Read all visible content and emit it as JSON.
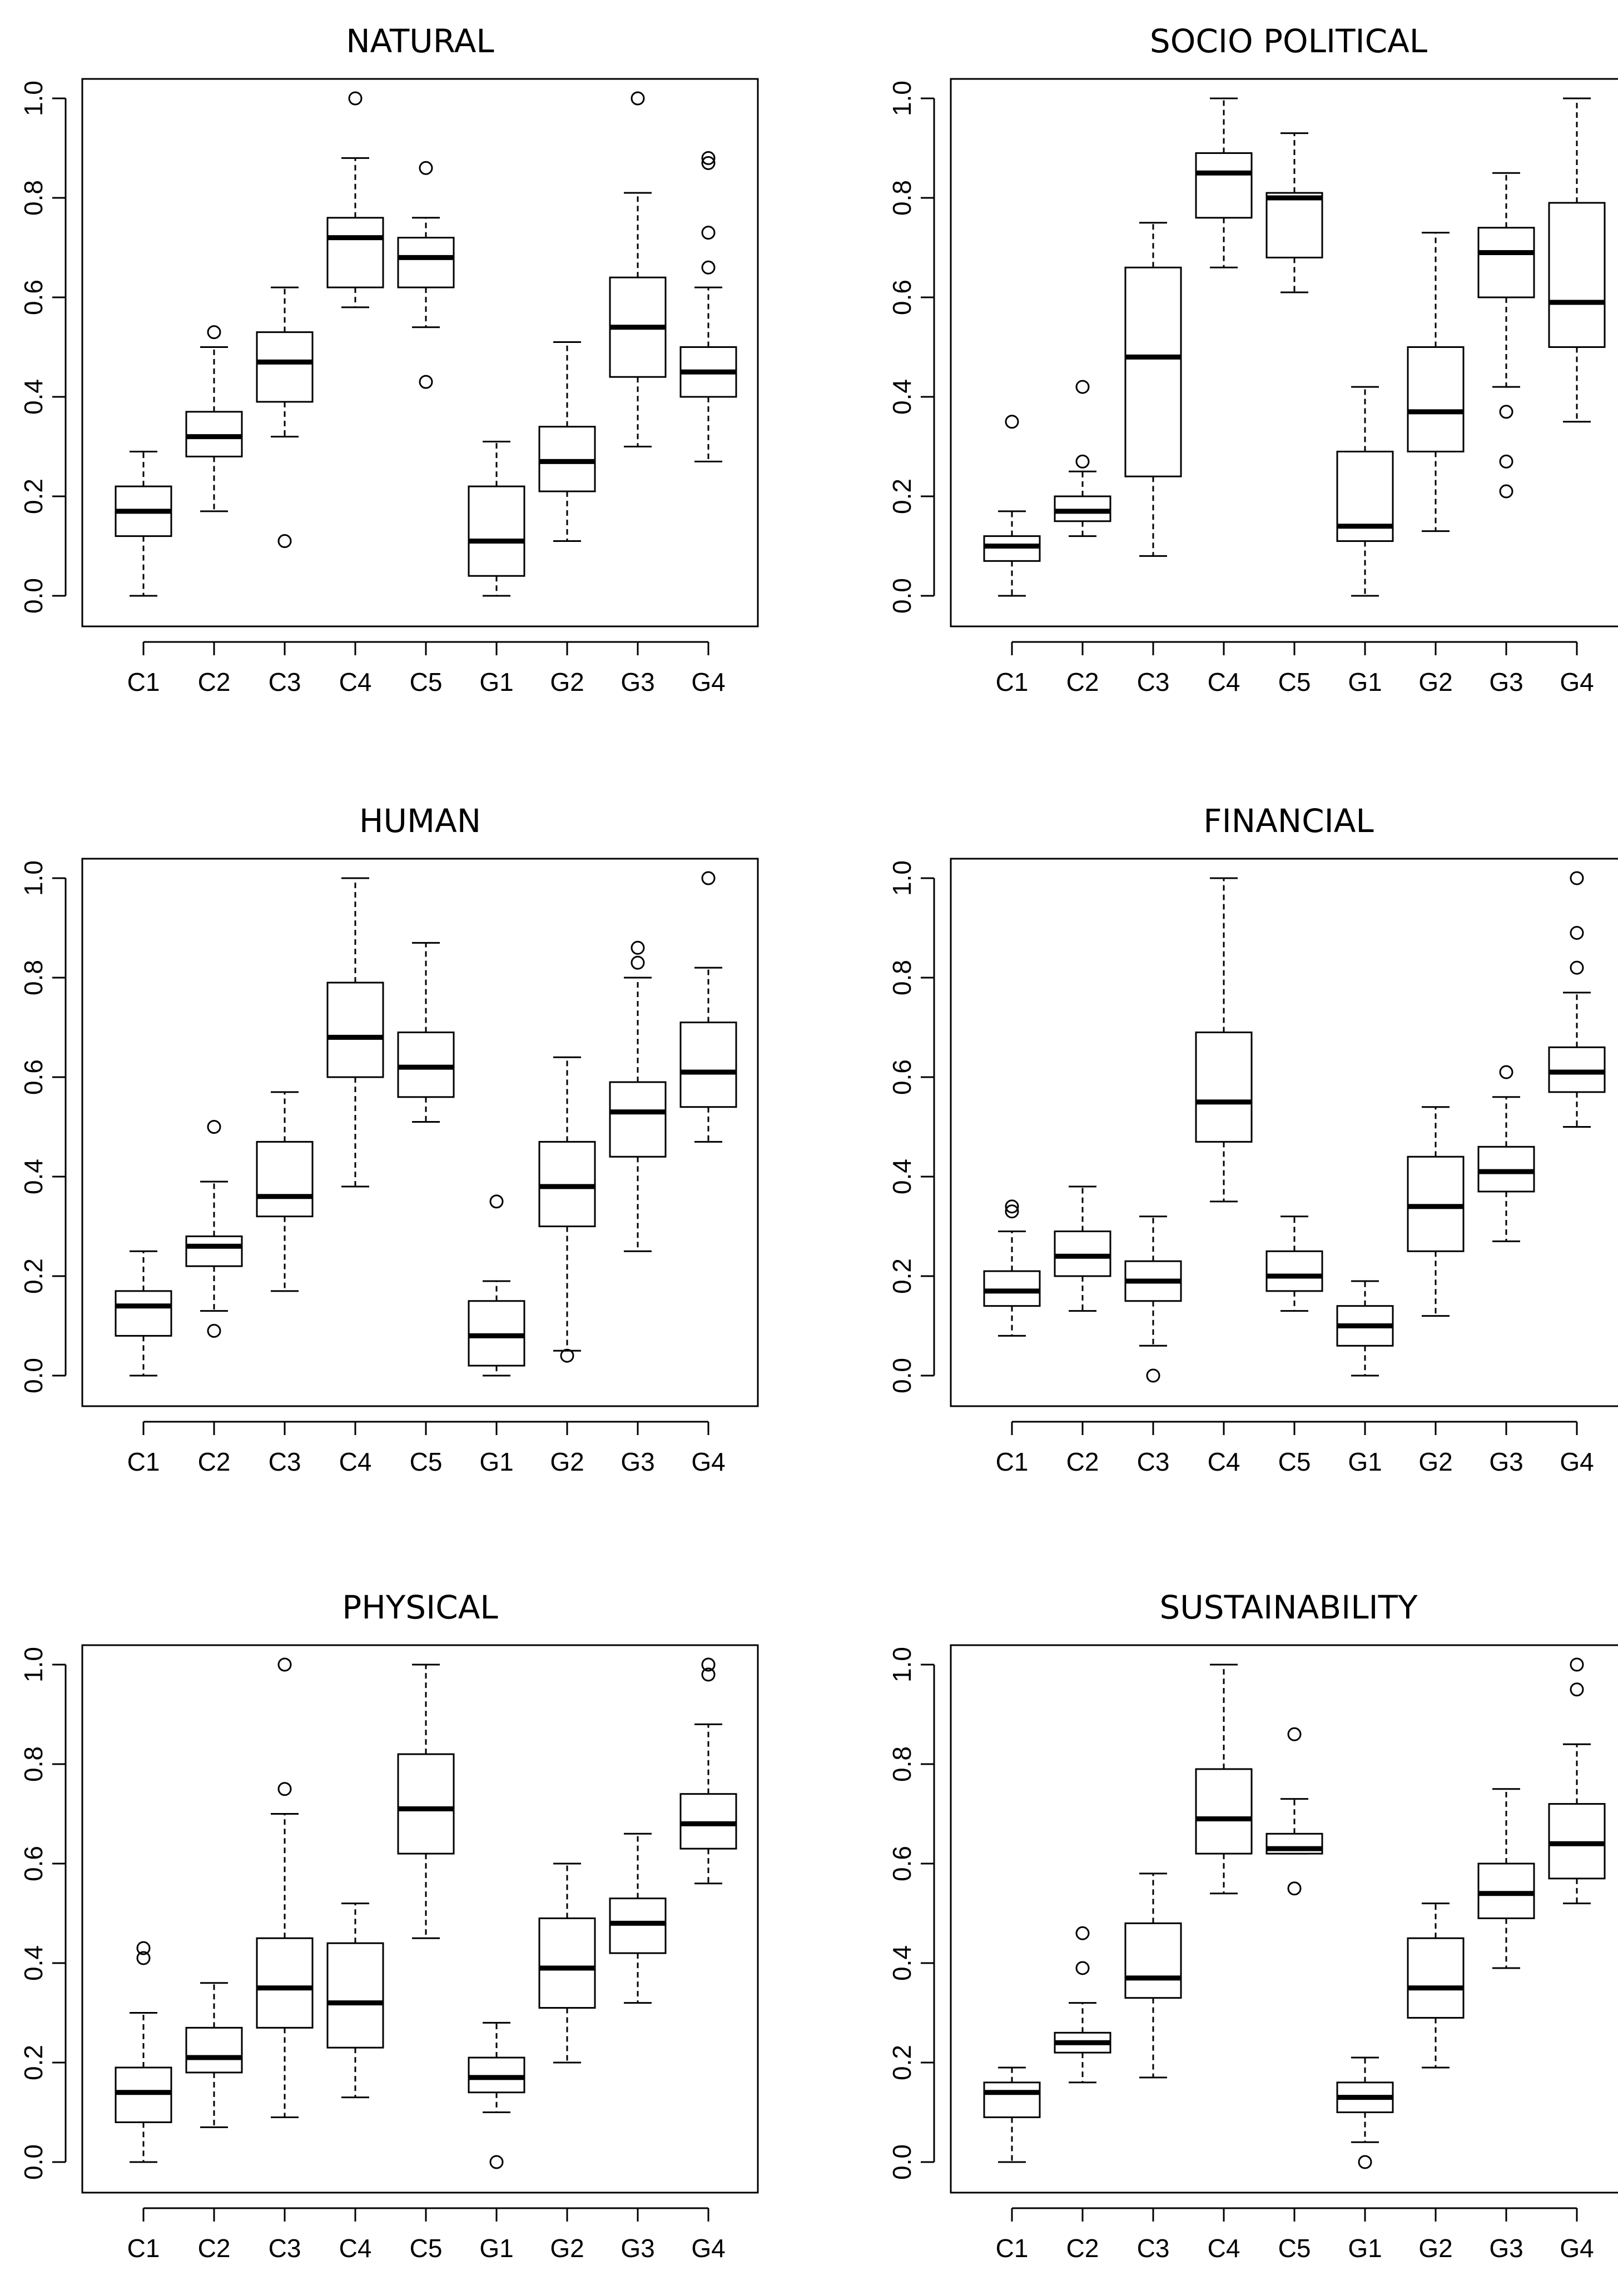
{
  "chart_data": [
    {
      "type": "boxplot",
      "title": "NATURAL",
      "categories": [
        "C1",
        "C2",
        "C3",
        "C4",
        "C5",
        "G1",
        "G2",
        "G3",
        "G4"
      ],
      "ylim": [
        0,
        1
      ],
      "yticks": [
        "0.0",
        "0.2",
        "0.4",
        "0.6",
        "0.8",
        "1.0"
      ],
      "boxes": [
        {
          "min": 0.0,
          "q1": 0.12,
          "median": 0.17,
          "q3": 0.22,
          "max": 0.29,
          "outliers": []
        },
        {
          "min": 0.17,
          "q1": 0.28,
          "median": 0.32,
          "q3": 0.37,
          "max": 0.5,
          "outliers": [
            0.53
          ]
        },
        {
          "min": 0.32,
          "q1": 0.39,
          "median": 0.47,
          "q3": 0.53,
          "max": 0.62,
          "outliers": [
            0.11
          ]
        },
        {
          "min": 0.58,
          "q1": 0.62,
          "median": 0.72,
          "q3": 0.76,
          "max": 0.88,
          "outliers": [
            1.0
          ]
        },
        {
          "min": 0.54,
          "q1": 0.62,
          "median": 0.68,
          "q3": 0.72,
          "max": 0.76,
          "outliers": [
            0.86,
            0.43
          ]
        },
        {
          "min": 0.0,
          "q1": 0.04,
          "median": 0.11,
          "q3": 0.22,
          "max": 0.31,
          "outliers": []
        },
        {
          "min": 0.11,
          "q1": 0.21,
          "median": 0.27,
          "q3": 0.34,
          "max": 0.51,
          "outliers": []
        },
        {
          "min": 0.3,
          "q1": 0.44,
          "median": 0.54,
          "q3": 0.64,
          "max": 0.81,
          "outliers": [
            1.0
          ]
        },
        {
          "min": 0.27,
          "q1": 0.4,
          "median": 0.45,
          "q3": 0.5,
          "max": 0.62,
          "outliers": [
            0.66,
            0.73,
            0.87,
            0.88
          ]
        }
      ]
    },
    {
      "type": "boxplot",
      "title": "SOCIO POLITICAL",
      "categories": [
        "C1",
        "C2",
        "C3",
        "C4",
        "C5",
        "G1",
        "G2",
        "G3",
        "G4"
      ],
      "ylim": [
        0,
        1
      ],
      "yticks": [
        "0.0",
        "0.2",
        "0.4",
        "0.6",
        "0.8",
        "1.0"
      ],
      "boxes": [
        {
          "min": 0.0,
          "q1": 0.07,
          "median": 0.1,
          "q3": 0.12,
          "max": 0.17,
          "outliers": [
            0.35
          ]
        },
        {
          "min": 0.12,
          "q1": 0.15,
          "median": 0.17,
          "q3": 0.2,
          "max": 0.25,
          "outliers": [
            0.27,
            0.42
          ]
        },
        {
          "min": 0.08,
          "q1": 0.24,
          "median": 0.48,
          "q3": 0.66,
          "max": 0.75,
          "outliers": []
        },
        {
          "min": 0.66,
          "q1": 0.76,
          "median": 0.85,
          "q3": 0.89,
          "max": 1.0,
          "outliers": []
        },
        {
          "min": 0.61,
          "q1": 0.68,
          "median": 0.8,
          "q3": 0.81,
          "max": 0.93,
          "outliers": []
        },
        {
          "min": 0.0,
          "q1": 0.11,
          "median": 0.14,
          "q3": 0.29,
          "max": 0.42,
          "outliers": []
        },
        {
          "min": 0.13,
          "q1": 0.29,
          "median": 0.37,
          "q3": 0.5,
          "max": 0.73,
          "outliers": []
        },
        {
          "min": 0.42,
          "q1": 0.6,
          "median": 0.69,
          "q3": 0.74,
          "max": 0.85,
          "outliers": [
            0.37,
            0.27,
            0.21
          ]
        },
        {
          "min": 0.35,
          "q1": 0.5,
          "median": 0.59,
          "q3": 0.79,
          "max": 1.0,
          "outliers": []
        }
      ]
    },
    {
      "type": "boxplot",
      "title": "HUMAN",
      "categories": [
        "C1",
        "C2",
        "C3",
        "C4",
        "C5",
        "G1",
        "G2",
        "G3",
        "G4"
      ],
      "ylim": [
        0,
        1
      ],
      "yticks": [
        "0.0",
        "0.2",
        "0.4",
        "0.6",
        "0.8",
        "1.0"
      ],
      "boxes": [
        {
          "min": 0.0,
          "q1": 0.08,
          "median": 0.14,
          "q3": 0.17,
          "max": 0.25,
          "outliers": []
        },
        {
          "min": 0.13,
          "q1": 0.22,
          "median": 0.26,
          "q3": 0.28,
          "max": 0.39,
          "outliers": [
            0.5,
            0.09
          ]
        },
        {
          "min": 0.17,
          "q1": 0.32,
          "median": 0.36,
          "q3": 0.47,
          "max": 0.57,
          "outliers": []
        },
        {
          "min": 0.38,
          "q1": 0.6,
          "median": 0.68,
          "q3": 0.79,
          "max": 1.0,
          "outliers": []
        },
        {
          "min": 0.51,
          "q1": 0.56,
          "median": 0.62,
          "q3": 0.69,
          "max": 0.87,
          "outliers": []
        },
        {
          "min": 0.0,
          "q1": 0.02,
          "median": 0.08,
          "q3": 0.15,
          "max": 0.19,
          "outliers": [
            0.35
          ]
        },
        {
          "min": 0.05,
          "q1": 0.3,
          "median": 0.38,
          "q3": 0.47,
          "max": 0.64,
          "outliers": [
            0.04
          ]
        },
        {
          "min": 0.25,
          "q1": 0.44,
          "median": 0.53,
          "q3": 0.59,
          "max": 0.8,
          "outliers": [
            0.83,
            0.86
          ]
        },
        {
          "min": 0.47,
          "q1": 0.54,
          "median": 0.61,
          "q3": 0.71,
          "max": 0.82,
          "outliers": [
            1.0
          ]
        }
      ]
    },
    {
      "type": "boxplot",
      "title": "FINANCIAL",
      "categories": [
        "C1",
        "C2",
        "C3",
        "C4",
        "C5",
        "G1",
        "G2",
        "G3",
        "G4"
      ],
      "ylim": [
        0,
        1
      ],
      "yticks": [
        "0.0",
        "0.2",
        "0.4",
        "0.6",
        "0.8",
        "1.0"
      ],
      "boxes": [
        {
          "min": 0.08,
          "q1": 0.14,
          "median": 0.17,
          "q3": 0.21,
          "max": 0.29,
          "outliers": [
            0.33,
            0.34
          ]
        },
        {
          "min": 0.13,
          "q1": 0.2,
          "median": 0.24,
          "q3": 0.29,
          "max": 0.38,
          "outliers": []
        },
        {
          "min": 0.06,
          "q1": 0.15,
          "median": 0.19,
          "q3": 0.23,
          "max": 0.32,
          "outliers": [
            0.0
          ]
        },
        {
          "min": 0.35,
          "q1": 0.47,
          "median": 0.55,
          "q3": 0.69,
          "max": 1.0,
          "outliers": []
        },
        {
          "min": 0.13,
          "q1": 0.17,
          "median": 0.2,
          "q3": 0.25,
          "max": 0.32,
          "outliers": []
        },
        {
          "min": 0.0,
          "q1": 0.06,
          "median": 0.1,
          "q3": 0.14,
          "max": 0.19,
          "outliers": []
        },
        {
          "min": 0.12,
          "q1": 0.25,
          "median": 0.34,
          "q3": 0.44,
          "max": 0.54,
          "outliers": []
        },
        {
          "min": 0.27,
          "q1": 0.37,
          "median": 0.41,
          "q3": 0.46,
          "max": 0.56,
          "outliers": [
            0.61
          ]
        },
        {
          "min": 0.5,
          "q1": 0.57,
          "median": 0.61,
          "q3": 0.66,
          "max": 0.77,
          "outliers": [
            0.82,
            0.89,
            1.0
          ]
        }
      ]
    },
    {
      "type": "boxplot",
      "title": "PHYSICAL",
      "categories": [
        "C1",
        "C2",
        "C3",
        "C4",
        "C5",
        "G1",
        "G2",
        "G3",
        "G4"
      ],
      "ylim": [
        0,
        1
      ],
      "yticks": [
        "0.0",
        "0.2",
        "0.4",
        "0.6",
        "0.8",
        "1.0"
      ],
      "boxes": [
        {
          "min": 0.0,
          "q1": 0.08,
          "median": 0.14,
          "q3": 0.19,
          "max": 0.3,
          "outliers": [
            0.41,
            0.43
          ]
        },
        {
          "min": 0.07,
          "q1": 0.18,
          "median": 0.21,
          "q3": 0.27,
          "max": 0.36,
          "outliers": []
        },
        {
          "min": 0.09,
          "q1": 0.27,
          "median": 0.35,
          "q3": 0.45,
          "max": 0.7,
          "outliers": [
            0.75,
            1.0
          ]
        },
        {
          "min": 0.13,
          "q1": 0.23,
          "median": 0.32,
          "q3": 0.44,
          "max": 0.52,
          "outliers": []
        },
        {
          "min": 0.45,
          "q1": 0.62,
          "median": 0.71,
          "q3": 0.82,
          "max": 1.0,
          "outliers": []
        },
        {
          "min": 0.1,
          "q1": 0.14,
          "median": 0.17,
          "q3": 0.21,
          "max": 0.28,
          "outliers": [
            0.0
          ]
        },
        {
          "min": 0.2,
          "q1": 0.31,
          "median": 0.39,
          "q3": 0.49,
          "max": 0.6,
          "outliers": []
        },
        {
          "min": 0.32,
          "q1": 0.42,
          "median": 0.48,
          "q3": 0.53,
          "max": 0.66,
          "outliers": []
        },
        {
          "min": 0.56,
          "q1": 0.63,
          "median": 0.68,
          "q3": 0.74,
          "max": 0.88,
          "outliers": [
            0.98,
            1.0
          ]
        }
      ]
    },
    {
      "type": "boxplot",
      "title": "SUSTAINABILITY",
      "categories": [
        "C1",
        "C2",
        "C3",
        "C4",
        "C5",
        "G1",
        "G2",
        "G3",
        "G4"
      ],
      "ylim": [
        0,
        1
      ],
      "yticks": [
        "0.0",
        "0.2",
        "0.4",
        "0.6",
        "0.8",
        "1.0"
      ],
      "boxes": [
        {
          "min": 0.0,
          "q1": 0.09,
          "median": 0.14,
          "q3": 0.16,
          "max": 0.19,
          "outliers": []
        },
        {
          "min": 0.16,
          "q1": 0.22,
          "median": 0.24,
          "q3": 0.26,
          "max": 0.32,
          "outliers": [
            0.39,
            0.46
          ]
        },
        {
          "min": 0.17,
          "q1": 0.33,
          "median": 0.37,
          "q3": 0.48,
          "max": 0.58,
          "outliers": []
        },
        {
          "min": 0.54,
          "q1": 0.62,
          "median": 0.69,
          "q3": 0.79,
          "max": 1.0,
          "outliers": []
        },
        {
          "min": 0.62,
          "q1": 0.62,
          "median": 0.63,
          "q3": 0.66,
          "max": 0.73,
          "outliers": [
            0.86,
            0.55
          ]
        },
        {
          "min": 0.04,
          "q1": 0.1,
          "median": 0.13,
          "q3": 0.16,
          "max": 0.21,
          "outliers": [
            0.0
          ]
        },
        {
          "min": 0.19,
          "q1": 0.29,
          "median": 0.35,
          "q3": 0.45,
          "max": 0.52,
          "outliers": []
        },
        {
          "min": 0.39,
          "q1": 0.49,
          "median": 0.54,
          "q3": 0.6,
          "max": 0.75,
          "outliers": []
        },
        {
          "min": 0.52,
          "q1": 0.57,
          "median": 0.64,
          "q3": 0.72,
          "max": 0.84,
          "outliers": [
            0.95,
            1.0
          ]
        }
      ]
    }
  ]
}
